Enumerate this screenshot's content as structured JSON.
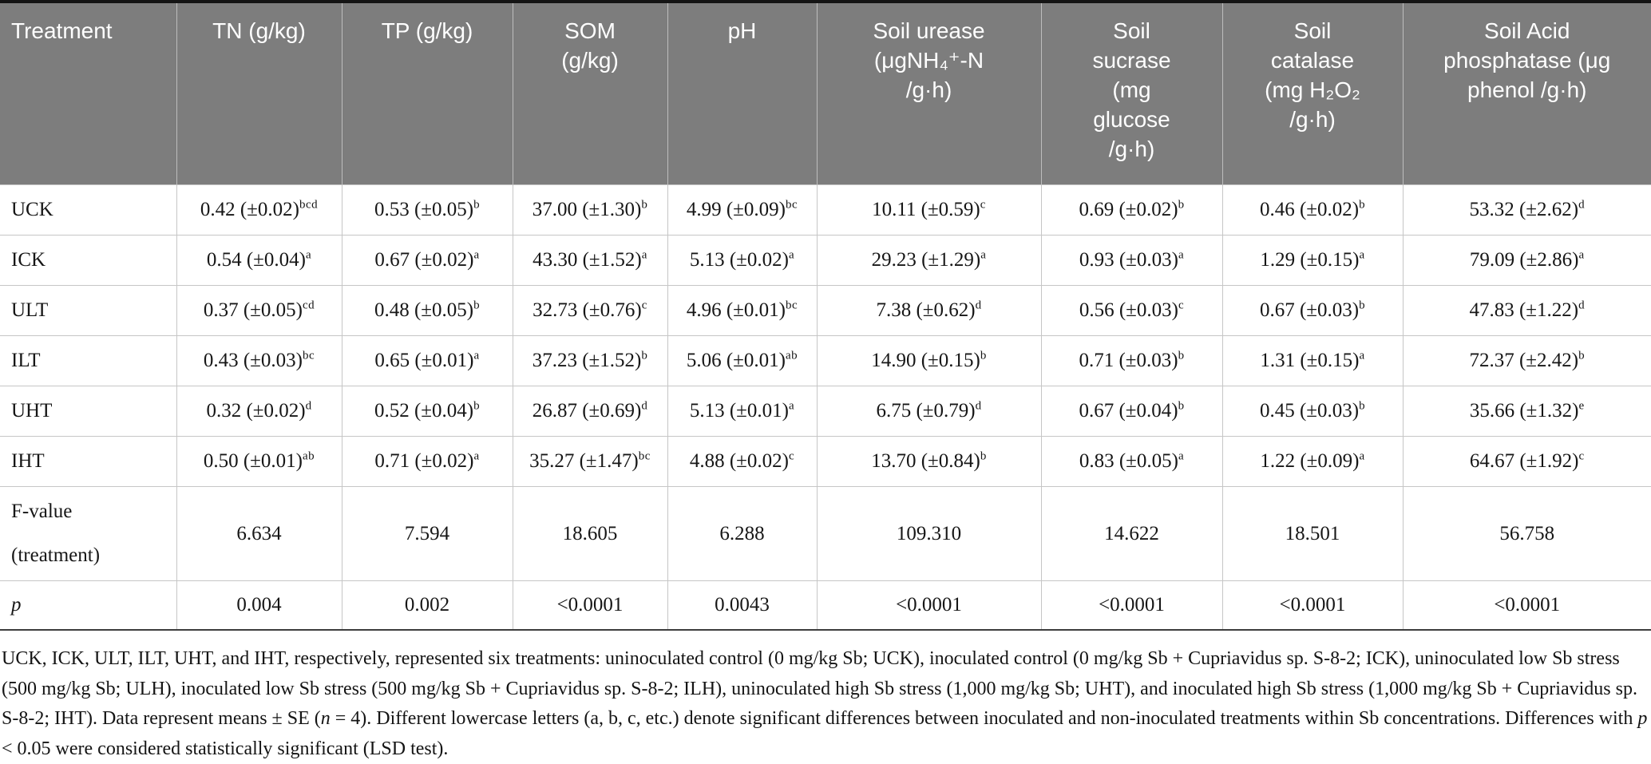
{
  "table": {
    "columns": [
      {
        "label": "Treatment"
      },
      {
        "label": "TN (g/kg)"
      },
      {
        "label": "TP (g/kg)"
      },
      {
        "label": "SOM\n(g/kg)"
      },
      {
        "label": "pH"
      },
      {
        "label": "Soil urease\n(μgNH₄⁺-N\n/g·h)"
      },
      {
        "label": "Soil\nsucrase\n(mg\nglucose\n/g·h)"
      },
      {
        "label": "Soil\ncatalase\n(mg H₂O₂\n/g·h)"
      },
      {
        "label": "Soil Acid\nphosphatase (μg\nphenol /g·h)"
      }
    ],
    "rows": [
      {
        "label": "UCK",
        "type": "data",
        "cells": [
          {
            "v": "0.42 (±0.02)",
            "sup": "bcd"
          },
          {
            "v": "0.53 (±0.05)",
            "sup": "b"
          },
          {
            "v": "37.00 (±1.30)",
            "sup": "b"
          },
          {
            "v": "4.99 (±0.09)",
            "sup": "bc"
          },
          {
            "v": "10.11 (±0.59)",
            "sup": "c"
          },
          {
            "v": "0.69 (±0.02)",
            "sup": "b"
          },
          {
            "v": "0.46 (±0.02)",
            "sup": "b"
          },
          {
            "v": "53.32 (±2.62)",
            "sup": "d"
          }
        ]
      },
      {
        "label": "ICK",
        "type": "data",
        "cells": [
          {
            "v": "0.54 (±0.04)",
            "sup": "a"
          },
          {
            "v": "0.67 (±0.02)",
            "sup": "a"
          },
          {
            "v": "43.30 (±1.52)",
            "sup": "a"
          },
          {
            "v": "5.13 (±0.02)",
            "sup": "a"
          },
          {
            "v": "29.23 (±1.29)",
            "sup": "a"
          },
          {
            "v": "0.93 (±0.03)",
            "sup": "a"
          },
          {
            "v": "1.29 (±0.15)",
            "sup": "a"
          },
          {
            "v": "79.09 (±2.86)",
            "sup": "a"
          }
        ]
      },
      {
        "label": "ULT",
        "type": "data",
        "cells": [
          {
            "v": "0.37 (±0.05)",
            "sup": "cd"
          },
          {
            "v": "0.48 (±0.05)",
            "sup": "b"
          },
          {
            "v": "32.73 (±0.76)",
            "sup": "c"
          },
          {
            "v": "4.96 (±0.01)",
            "sup": "bc"
          },
          {
            "v": "7.38 (±0.62)",
            "sup": "d"
          },
          {
            "v": "0.56 (±0.03)",
            "sup": "c"
          },
          {
            "v": "0.67 (±0.03)",
            "sup": "b"
          },
          {
            "v": "47.83 (±1.22)",
            "sup": "d"
          }
        ]
      },
      {
        "label": "ILT",
        "type": "data",
        "cells": [
          {
            "v": "0.43 (±0.03)",
            "sup": "bc"
          },
          {
            "v": "0.65 (±0.01)",
            "sup": "a"
          },
          {
            "v": "37.23 (±1.52)",
            "sup": "b"
          },
          {
            "v": "5.06 (±0.01)",
            "sup": "ab"
          },
          {
            "v": "14.90 (±0.15)",
            "sup": "b"
          },
          {
            "v": "0.71 (±0.03)",
            "sup": "b"
          },
          {
            "v": "1.31 (±0.15)",
            "sup": "a"
          },
          {
            "v": "72.37 (±2.42)",
            "sup": "b"
          }
        ]
      },
      {
        "label": "UHT",
        "type": "data",
        "cells": [
          {
            "v": "0.32 (±0.02)",
            "sup": "d"
          },
          {
            "v": "0.52 (±0.04)",
            "sup": "b"
          },
          {
            "v": "26.87 (±0.69)",
            "sup": "d"
          },
          {
            "v": "5.13 (±0.01)",
            "sup": "a"
          },
          {
            "v": "6.75 (±0.79)",
            "sup": "d"
          },
          {
            "v": "0.67 (±0.04)",
            "sup": "b"
          },
          {
            "v": "0.45 (±0.03)",
            "sup": "b"
          },
          {
            "v": "35.66 (±1.32)",
            "sup": "e"
          }
        ]
      },
      {
        "label": "IHT",
        "type": "data",
        "cells": [
          {
            "v": "0.50 (±0.01)",
            "sup": "ab"
          },
          {
            "v": "0.71 (±0.02)",
            "sup": "a"
          },
          {
            "v": "35.27 (±1.47)",
            "sup": "bc"
          },
          {
            "v": "4.88 (±0.02)",
            "sup": "c"
          },
          {
            "v": "13.70 (±0.84)",
            "sup": "b"
          },
          {
            "v": "0.83 (±0.05)",
            "sup": "a"
          },
          {
            "v": "1.22 (±0.09)",
            "sup": "a"
          },
          {
            "v": "64.67 (±1.92)",
            "sup": "c"
          }
        ]
      },
      {
        "label": "F-value (treatment)",
        "type": "f",
        "cells": [
          {
            "v": "6.634"
          },
          {
            "v": "7.594"
          },
          {
            "v": "18.605"
          },
          {
            "v": "6.288"
          },
          {
            "v": "109.310"
          },
          {
            "v": "14.622"
          },
          {
            "v": "18.501"
          },
          {
            "v": "56.758"
          }
        ]
      },
      {
        "label": "p",
        "type": "p",
        "label_italic": true,
        "cells": [
          {
            "v": "0.004"
          },
          {
            "v": "0.002"
          },
          {
            "v": "<0.0001"
          },
          {
            "v": "0.0043"
          },
          {
            "v": "<0.0001"
          },
          {
            "v": "<0.0001"
          },
          {
            "v": "<0.0001"
          },
          {
            "v": "<0.0001"
          }
        ]
      }
    ]
  },
  "footnote": {
    "segments": [
      {
        "text": "UCK, ICK, ULT, ILT, UHT, and IHT, respectively, represented six treatments: uninoculated control (0 mg/kg Sb; UCK), inoculated control (0 mg/kg Sb + Cupriavidus sp. S-8-2; ICK), uninoculated low Sb stress (500 mg/kg Sb; ULH), inoculated low Sb stress (500 mg/kg Sb + Cupriavidus sp. S-8-2; ILH), uninoculated high Sb stress (1,000 mg/kg Sb; UHT), and inoculated high Sb stress (1,000 mg/kg Sb + Cupriavidus sp. S-8-2; IHT). Data represent means ± SE (",
        "italic": false
      },
      {
        "text": "n",
        "italic": true
      },
      {
        "text": " = 4). Different lowercase letters (a, b, c, etc.) denote significant differences between inoculated and non-inoculated treatments within Sb concentrations. Differences with ",
        "italic": false
      },
      {
        "text": "p",
        "italic": true
      },
      {
        "text": " < 0.05 were considered statistically significant (LSD test).",
        "italic": false
      }
    ]
  }
}
